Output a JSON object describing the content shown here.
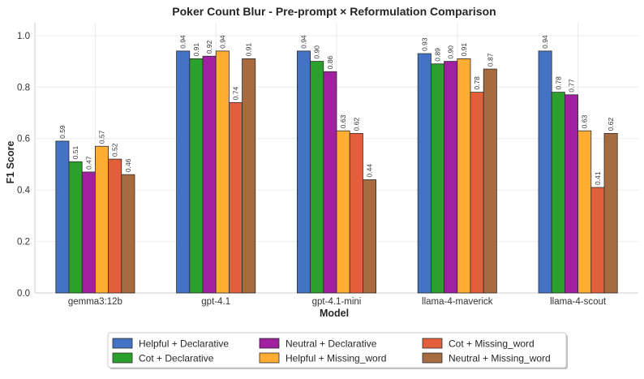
{
  "chart_data": {
    "type": "bar",
    "title": "Poker Count Blur - Pre-prompt × Reformulation Comparison",
    "xlabel": "Model",
    "ylabel": "F1 Score",
    "ylim": [
      0,
      1.05
    ],
    "yticks": [
      "0.0",
      "0.2",
      "0.4",
      "0.6",
      "0.8",
      "1.0"
    ],
    "grid": true,
    "legend_position": "bottom-center",
    "categories": [
      "gemma3:12b",
      "gpt-4.1",
      "gpt-4.1-mini",
      "llama-4-maverick",
      "llama-4-scout"
    ],
    "series": [
      {
        "name": "Helpful + Declarative",
        "color": "#4472c4",
        "values": [
          0.59,
          0.94,
          0.94,
          0.93,
          0.94
        ],
        "labels": [
          "0.59",
          "0.94",
          "0.94",
          "0.93",
          "0.94"
        ]
      },
      {
        "name": "Cot + Declarative",
        "color": "#2ca02c",
        "values": [
          0.51,
          0.91,
          0.9,
          0.89,
          0.78
        ],
        "labels": [
          "0.51",
          "0.91",
          "0.90",
          "0.89",
          "0.78"
        ]
      },
      {
        "name": "Neutral + Declarative",
        "color": "#a020a0",
        "values": [
          0.47,
          0.92,
          0.86,
          0.9,
          0.77
        ],
        "labels": [
          "0.47",
          "0.92",
          "0.86",
          "0.90",
          "0.77"
        ]
      },
      {
        "name": "Helpful + Missing_word",
        "color": "#ffad33",
        "values": [
          0.57,
          0.94,
          0.63,
          0.91,
          0.63
        ],
        "labels": [
          "0.57",
          "0.94",
          "0.63",
          "0.91",
          "0.63"
        ]
      },
      {
        "name": "Cot + Missing_word",
        "color": "#e35f3c",
        "values": [
          0.52,
          0.74,
          0.62,
          0.78,
          0.41
        ],
        "labels": [
          "0.52",
          "0.74",
          "0.62",
          "0.78",
          "0.41"
        ]
      },
      {
        "name": "Neutral + Missing_word",
        "color": "#a86b40",
        "values": [
          0.46,
          0.91,
          0.44,
          0.87,
          0.62
        ],
        "labels": [
          "0.46",
          "0.91",
          "0.44",
          "0.87",
          "0.62"
        ]
      }
    ]
  }
}
